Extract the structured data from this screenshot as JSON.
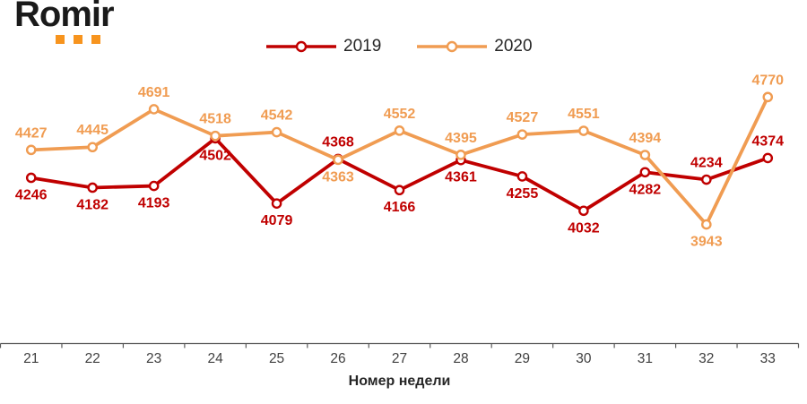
{
  "logo": {
    "text": "Romir",
    "text_color": "#1A1A1A",
    "accent_color": "#F7941E"
  },
  "legend": {
    "items": [
      {
        "label": "2019",
        "color": "#C00000"
      },
      {
        "label": "2020",
        "color": "#F09C52"
      }
    ]
  },
  "chart_data": {
    "type": "line",
    "title": "",
    "xlabel": "Номер недели",
    "ylabel": "",
    "categories": [
      "21",
      "22",
      "23",
      "24",
      "25",
      "26",
      "27",
      "28",
      "29",
      "30",
      "31",
      "32",
      "33"
    ],
    "series": [
      {
        "name": "2019",
        "color": "#C00000",
        "values": [
          4246,
          4182,
          4193,
          4502,
          4079,
          4368,
          4166,
          4361,
          4255,
          4032,
          4282,
          4234,
          4374
        ],
        "label_side": [
          "below",
          "below",
          "below",
          "below",
          "below",
          "above",
          "below",
          "below",
          "below",
          "below",
          "below",
          "above",
          "above"
        ]
      },
      {
        "name": "2020",
        "color": "#F09C52",
        "values": [
          4427,
          4445,
          4691,
          4518,
          4542,
          4363,
          4552,
          4395,
          4527,
          4551,
          4394,
          3943,
          4770
        ],
        "label_side": [
          "above",
          "above",
          "above",
          "above",
          "above",
          "below",
          "above",
          "above",
          "above",
          "above",
          "above",
          "below",
          "above"
        ]
      }
    ],
    "ylim": [
      3170,
      4900
    ],
    "grid": false,
    "y_axis_visible": false,
    "data_labels": true,
    "marker": "circle-open",
    "legend_position": "top",
    "axis_color": "#595959",
    "tick_label_color": "#404040",
    "axis_title_color": "#262626"
  }
}
